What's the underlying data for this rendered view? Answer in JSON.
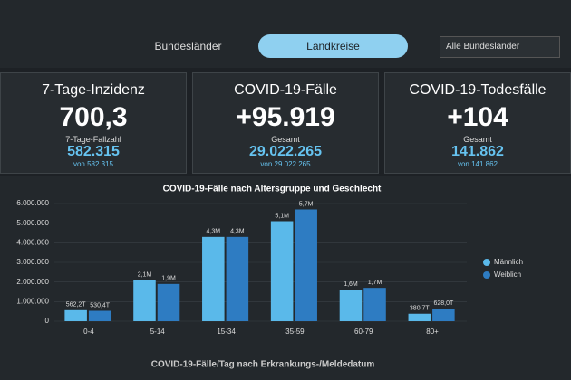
{
  "tabs": [
    "Bundesländer",
    "Landkreise"
  ],
  "active_tab": 1,
  "dropdown": "Alle Bundesländer",
  "cards": [
    {
      "title": "7-Tage-Inzidenz",
      "value": "700,3",
      "sub_label": "7-Tage-Fallzahl",
      "sub_value": "582.315",
      "sub_note": "von 582.315"
    },
    {
      "title": "COVID-19-Fälle",
      "value": "+95.919",
      "sub_label": "Gesamt",
      "sub_value": "29.022.265",
      "sub_note": "von 29.022.265"
    },
    {
      "title": "COVID-19-Todesfälle",
      "value": "+104",
      "sub_label": "Gesamt",
      "sub_value": "141.862",
      "sub_note": "von 141.862"
    }
  ],
  "chart_data": {
    "type": "bar",
    "title": "COVID-19-Fälle nach Altersgruppe und Geschlecht",
    "categories": [
      "0-4",
      "5-14",
      "15-34",
      "35-59",
      "60-79",
      "80+"
    ],
    "series": [
      {
        "name": "Männlich",
        "color": "#5ab9ea",
        "values": [
          562200,
          2100000,
          4300000,
          5100000,
          1600000,
          380700
        ],
        "value_labels": [
          "562,2T",
          "2,1M",
          "4,3M",
          "5,1M",
          "1,6M",
          "380,7T"
        ]
      },
      {
        "name": "Weiblich",
        "color": "#2e7cc2",
        "values": [
          530400,
          1900000,
          4300000,
          5700000,
          1700000,
          628000
        ],
        "value_labels": [
          "530,4T",
          "1,9M",
          "4,3M",
          "5,7M",
          "1,7M",
          "628,0T"
        ]
      }
    ],
    "ylim": [
      0,
      6000000
    ],
    "yticks": [
      0,
      {
        "value": 1000000,
        "label": "1.000.000"
      },
      {
        "value": 2000000,
        "label": "2.000.000"
      },
      {
        "value": 3000000,
        "label": "3.000.000"
      },
      {
        "value": 4000000,
        "label": "4.000.000"
      },
      {
        "value": 5000000,
        "label": "5.000.000"
      },
      {
        "value": 6000000,
        "label": "6.000.000"
      }
    ],
    "grid": true,
    "legend": "right"
  },
  "footer_title": "COVID-19-Fälle/Tag nach Erkrankungs-/Meldedatum"
}
